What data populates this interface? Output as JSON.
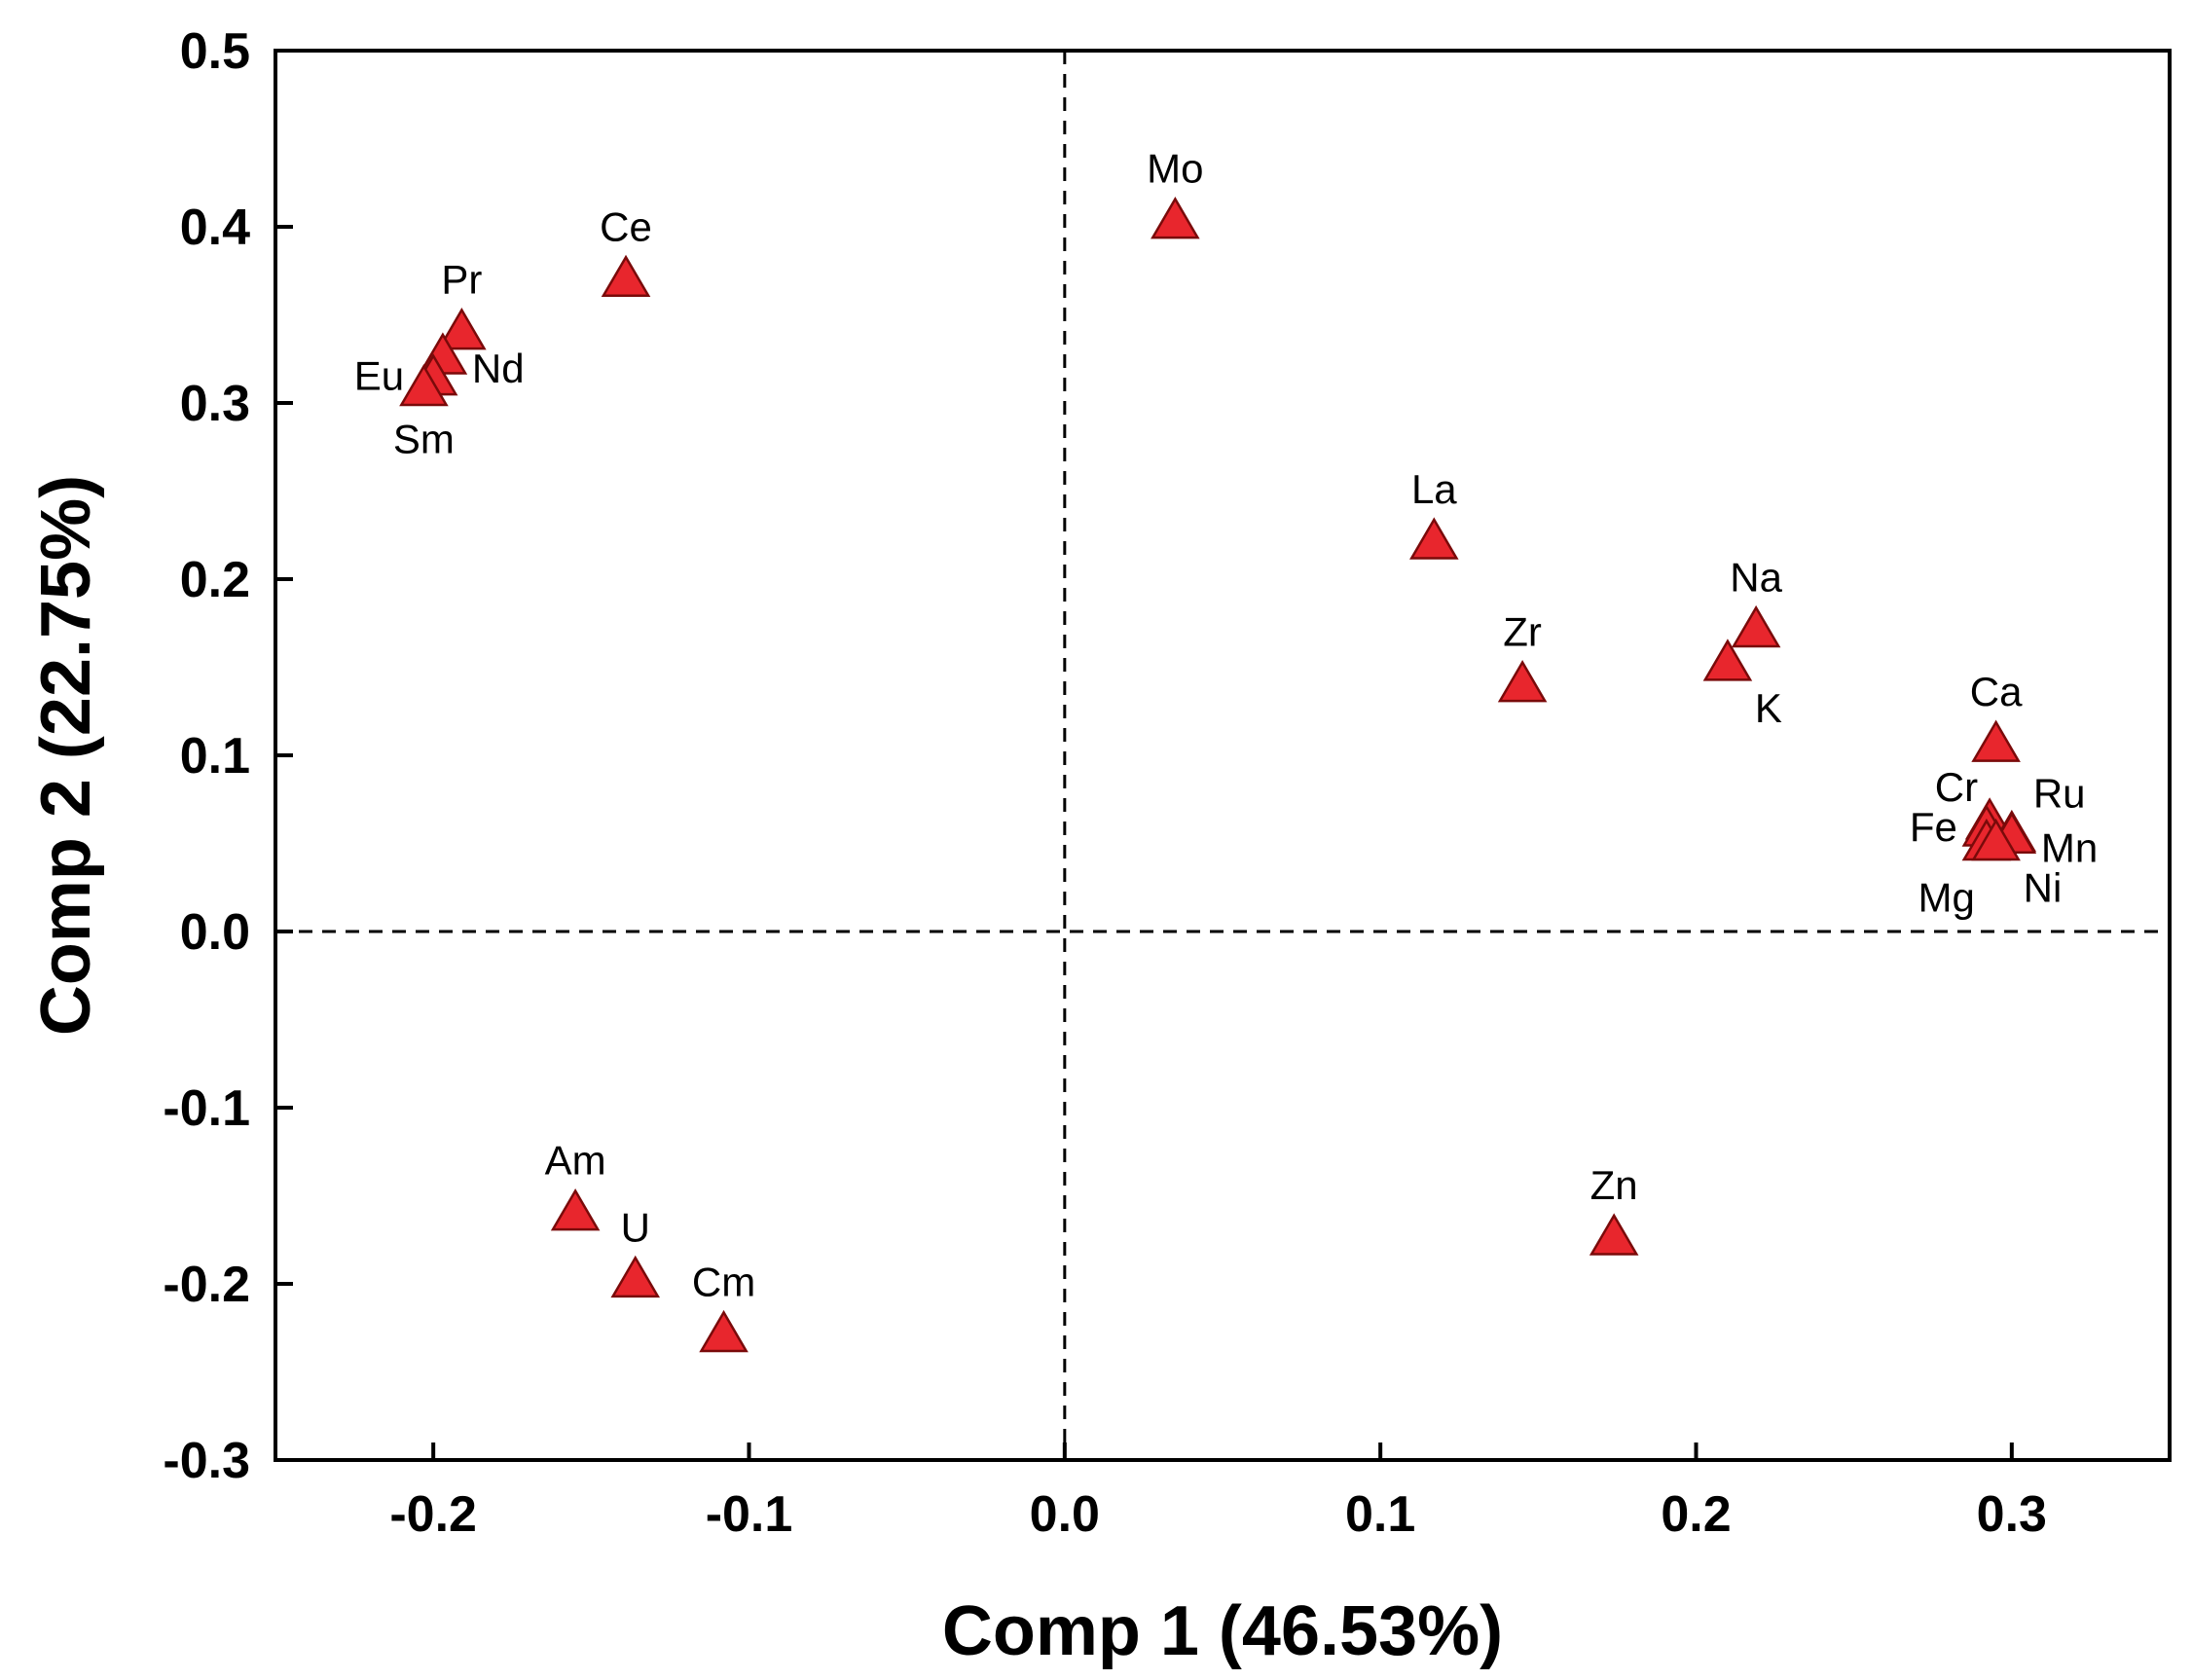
{
  "chart_data": {
    "type": "scatter",
    "title": "",
    "xlabel": "Comp 1 (46.53%)",
    "ylabel": "Comp 2 (22.75%)",
    "xlim": [
      -0.25,
      0.35
    ],
    "ylim": [
      -0.3,
      0.5
    ],
    "x_ticks": [
      -0.2,
      -0.1,
      0.0,
      0.1,
      0.2,
      0.3
    ],
    "y_ticks": [
      -0.3,
      -0.2,
      -0.1,
      0.0,
      0.1,
      0.2,
      0.3,
      0.4,
      0.5
    ],
    "x_tick_labels": [
      "-0.2",
      "-0.1",
      "0.0",
      "0.1",
      "0.2",
      "0.3"
    ],
    "y_tick_labels": [
      "-0.3",
      "-0.2",
      "-0.1",
      "0.0",
      "0.1",
      "0.2",
      "0.3",
      "0.4",
      "0.5"
    ],
    "reference_lines": {
      "x": 0.0,
      "y": 0.0,
      "style": "dashed"
    },
    "marker": {
      "shape": "triangle",
      "fill": "#e8262d",
      "stroke": "#7a0a0a"
    },
    "points": [
      {
        "label": "Mo",
        "x": 0.035,
        "y": 0.403,
        "label_pos": "above"
      },
      {
        "label": "Ce",
        "x": -0.139,
        "y": 0.37,
        "label_pos": "above"
      },
      {
        "label": "Pr",
        "x": -0.191,
        "y": 0.34,
        "label_pos": "above"
      },
      {
        "label": "Nd",
        "x": -0.197,
        "y": 0.326,
        "label_pos": "right"
      },
      {
        "label": "Eu",
        "x": -0.2,
        "y": 0.314,
        "label_pos": "left"
      },
      {
        "label": "Sm",
        "x": -0.203,
        "y": 0.308,
        "label_pos": "below"
      },
      {
        "label": "La",
        "x": 0.117,
        "y": 0.221,
        "label_pos": "above"
      },
      {
        "label": "Zr",
        "x": 0.145,
        "y": 0.14,
        "label_pos": "above"
      },
      {
        "label": "Na",
        "x": 0.219,
        "y": 0.171,
        "label_pos": "above"
      },
      {
        "label": "K",
        "x": 0.21,
        "y": 0.152,
        "label_pos": "below-right"
      },
      {
        "label": "Ca",
        "x": 0.295,
        "y": 0.106,
        "label_pos": "above"
      },
      {
        "label": "Cr",
        "x": 0.293,
        "y": 0.062,
        "label_pos": "above-left"
      },
      {
        "label": "Ru",
        "x": 0.3,
        "y": 0.055,
        "label_pos": "above-right"
      },
      {
        "label": "Fe",
        "x": 0.292,
        "y": 0.058,
        "label_pos": "left"
      },
      {
        "label": "Mn",
        "x": 0.3,
        "y": 0.054,
        "label_pos": "right"
      },
      {
        "label": "Mg",
        "x": 0.292,
        "y": 0.05,
        "label_pos": "below-left"
      },
      {
        "label": "Ni",
        "x": 0.295,
        "y": 0.05,
        "label_pos": "below-right"
      },
      {
        "label": "Am",
        "x": -0.155,
        "y": -0.16,
        "label_pos": "above"
      },
      {
        "label": "U",
        "x": -0.136,
        "y": -0.198,
        "label_pos": "above"
      },
      {
        "label": "Cm",
        "x": -0.108,
        "y": -0.229,
        "label_pos": "above"
      },
      {
        "label": "Zn",
        "x": 0.174,
        "y": -0.174,
        "label_pos": "above"
      }
    ]
  }
}
